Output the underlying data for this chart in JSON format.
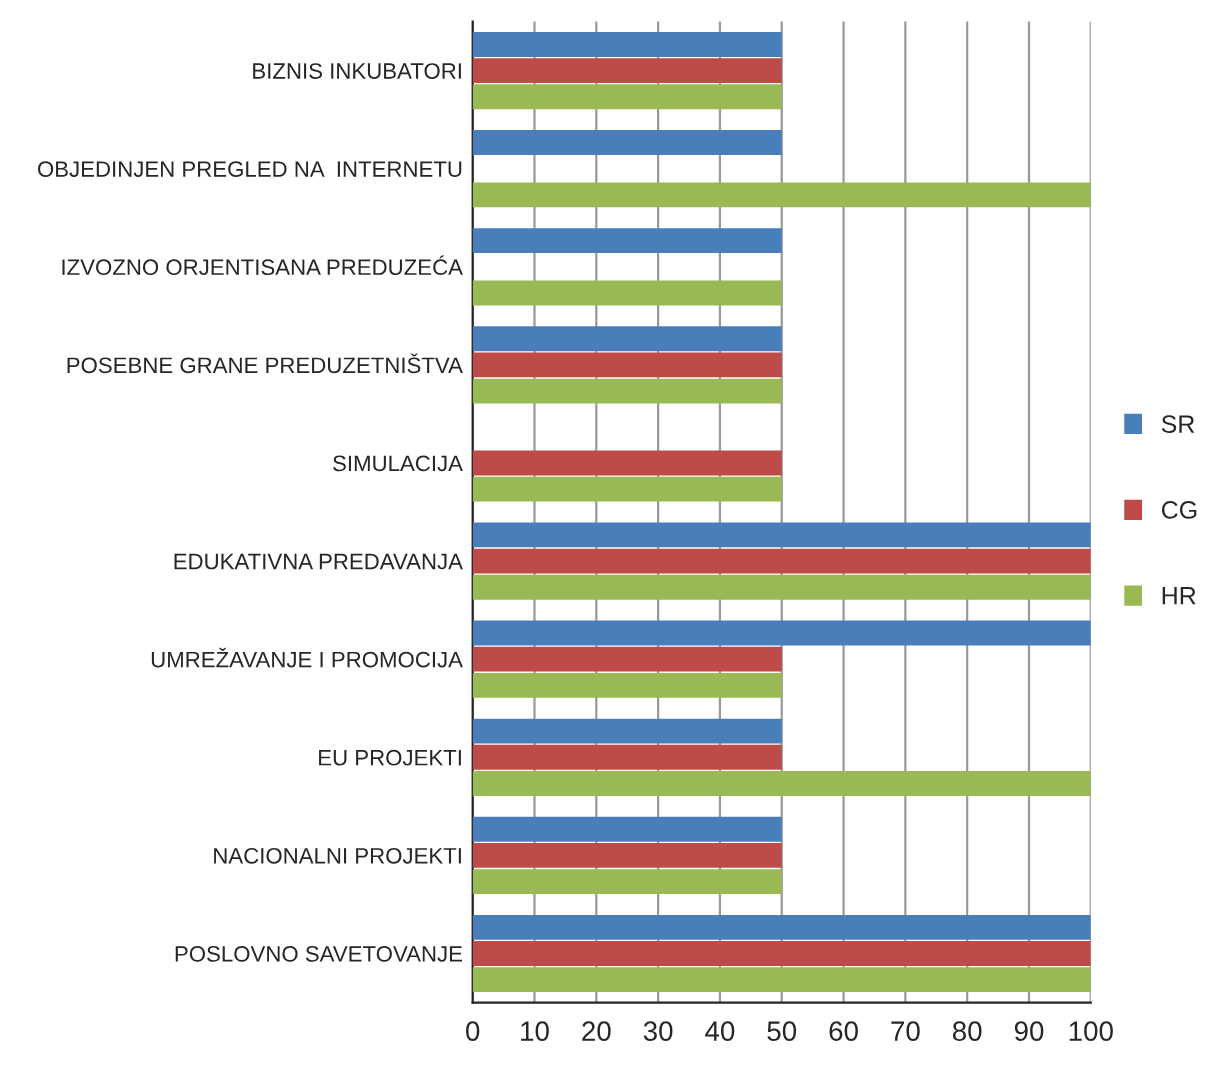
{
  "chart_data": {
    "type": "bar",
    "orientation": "horizontal",
    "categories": [
      "BIZNIS INKUBATORI",
      "OBJEDINJEN PREGLED NA  INTERNETU",
      "IZVOZNO ORJENTISANA PREDUZEĆA",
      "POSEBNE GRANE PREDUZETNIŠTVA",
      "SIMULACIJA",
      "EDUKATIVNA PREDAVANJA",
      "UMREŽAVANJE I PROMOCIJA",
      "EU PROJEKTI",
      "NACIONALNI PROJEKTI",
      "POSLOVNO SAVETOVANJE"
    ],
    "series": [
      {
        "name": "SR",
        "color": "#4a7ebb",
        "values": [
          50,
          50,
          50,
          50,
          null,
          100,
          100,
          50,
          50,
          100
        ]
      },
      {
        "name": "CG",
        "color": "#be4b48",
        "values": [
          50,
          null,
          null,
          50,
          50,
          100,
          50,
          50,
          50,
          100
        ]
      },
      {
        "name": "HR",
        "color": "#98b954",
        "values": [
          50,
          100,
          50,
          50,
          50,
          100,
          50,
          100,
          50,
          100
        ]
      }
    ],
    "xlim": [
      0,
      100
    ],
    "xticks": [
      0,
      10,
      20,
      30,
      40,
      50,
      60,
      70,
      80,
      90,
      100
    ],
    "grid": "x",
    "legend": "right"
  }
}
